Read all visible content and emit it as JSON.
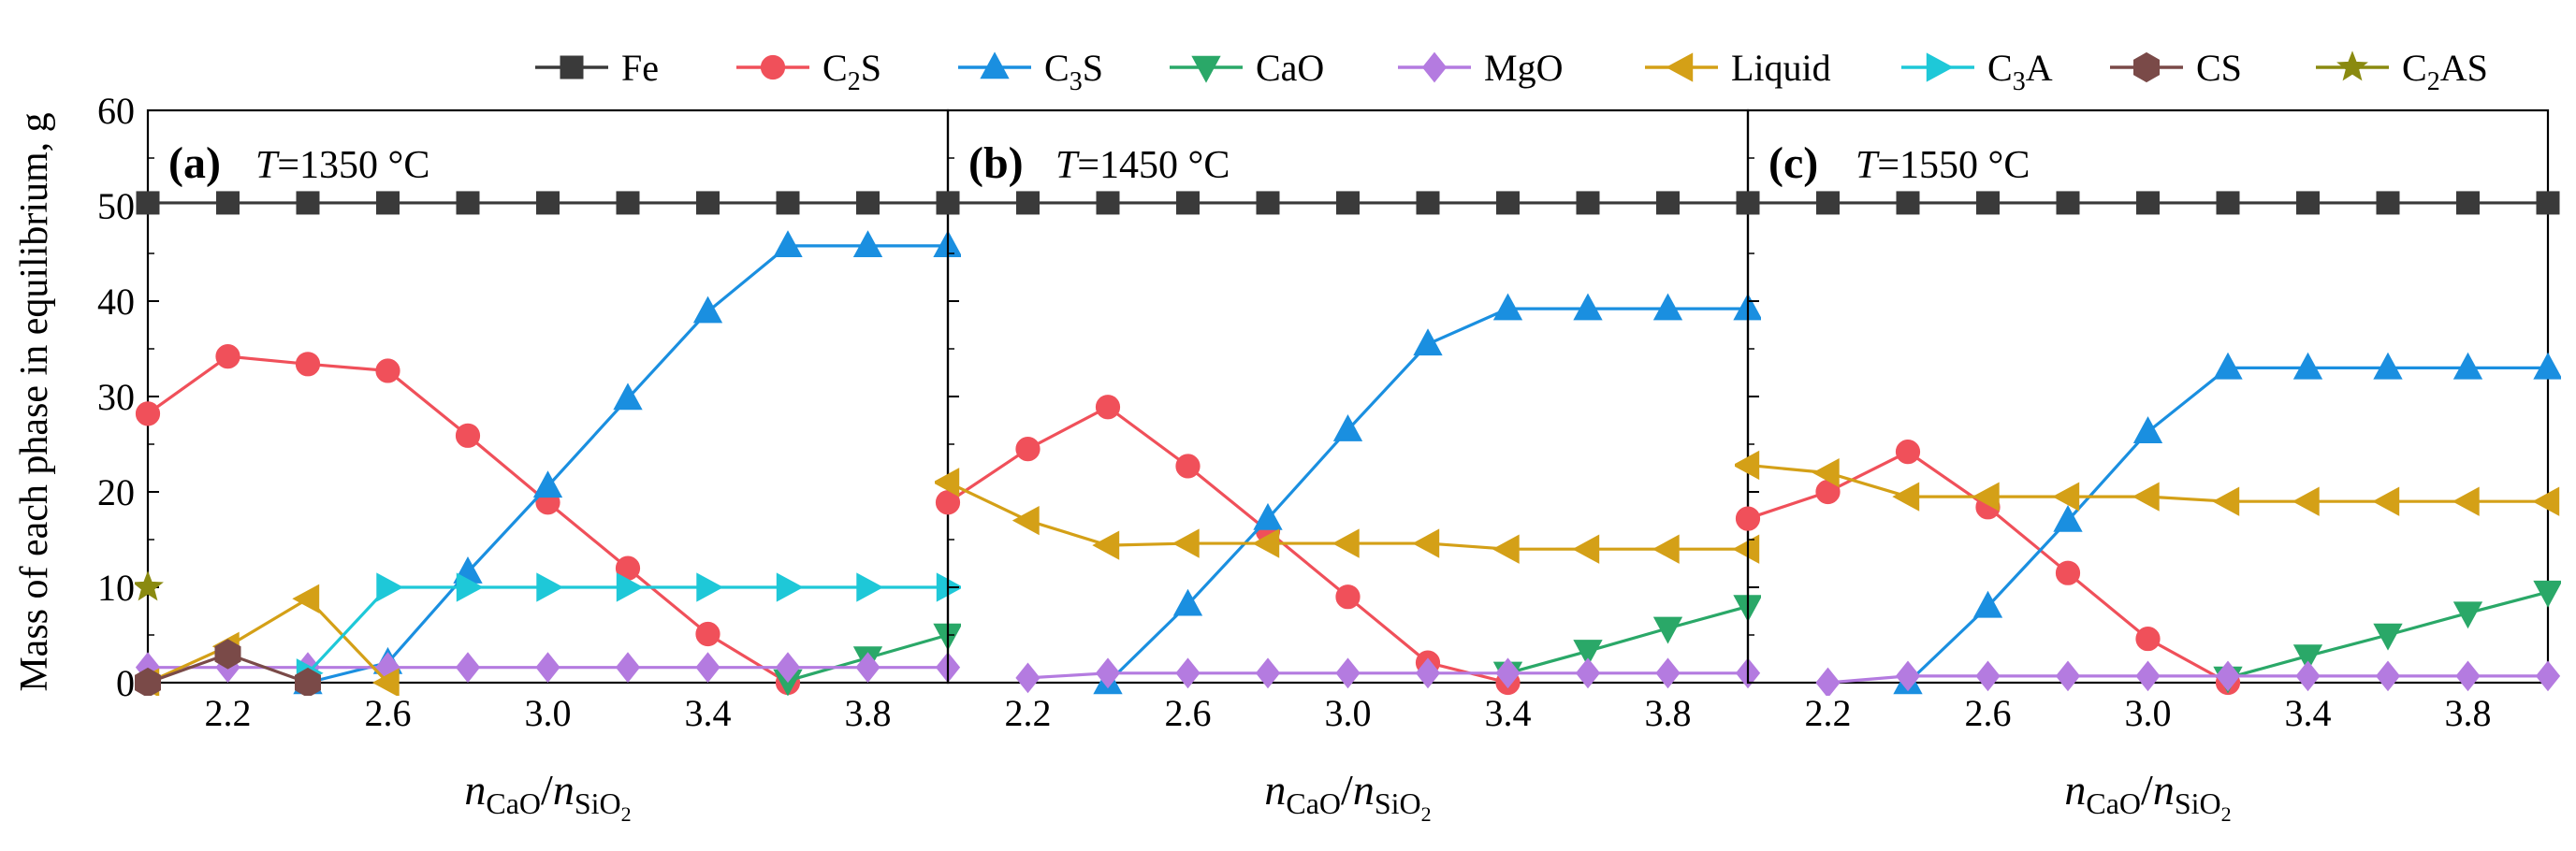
{
  "figure": {
    "ylabel": "Mass of each phase in equilibrium, g",
    "xlabel": {
      "n1": "n",
      "s1": "CaO",
      "sep": "/",
      "n2": "n",
      "s2": "SiO",
      "s2b": "2"
    }
  },
  "legend": [
    {
      "key": "Fe",
      "main": "Fe",
      "sub": "",
      "rest": "",
      "color": "#3a3a3a",
      "marker": "square"
    },
    {
      "key": "C2S",
      "main": "C",
      "sub": "2",
      "rest": "S",
      "color": "#f0505a",
      "marker": "circle"
    },
    {
      "key": "C3S",
      "main": "C",
      "sub": "3",
      "rest": "S",
      "color": "#1a8fe0",
      "marker": "triangle-up"
    },
    {
      "key": "CaO",
      "main": "CaO",
      "sub": "",
      "rest": "",
      "color": "#2aa868",
      "marker": "triangle-down"
    },
    {
      "key": "MgO",
      "main": "MgO",
      "sub": "",
      "rest": "",
      "color": "#b47be0",
      "marker": "diamond"
    },
    {
      "key": "Liquid",
      "main": "Liquid",
      "sub": "",
      "rest": "",
      "color": "#d4a017",
      "marker": "triangle-left"
    },
    {
      "key": "C3A",
      "main": "C",
      "sub": "3",
      "rest": "A",
      "color": "#1ec8d8",
      "marker": "triangle-right"
    },
    {
      "key": "CS",
      "main": "CS",
      "sub": "",
      "rest": "",
      "color": "#7a4a48",
      "marker": "hexagon"
    },
    {
      "key": "C2AS",
      "main": "C",
      "sub": "2",
      "rest": "AS",
      "color": "#8a8a10",
      "marker": "star"
    }
  ],
  "chart_data": [
    {
      "type": "line",
      "panel_label": "(a)",
      "temp_label": {
        "T": "T",
        "rest": "=1350 °C"
      },
      "xlabel": "nCaO/nSiO2",
      "ylabel": "Mass of each phase in equilibrium, g",
      "xlim": [
        2.0,
        4.0
      ],
      "ylim": [
        0,
        60
      ],
      "xticks": [
        "2.2",
        "2.6",
        "3.0",
        "3.4",
        "3.8"
      ],
      "yticks": [
        "0",
        "10",
        "20",
        "30",
        "40",
        "50",
        "60"
      ],
      "x": [
        2.0,
        2.2,
        2.4,
        2.6,
        2.8,
        3.0,
        3.2,
        3.4,
        3.6,
        3.8,
        4.0
      ],
      "series": [
        {
          "name": "Fe",
          "values": [
            50.3,
            50.3,
            50.3,
            50.3,
            50.3,
            50.3,
            50.3,
            50.3,
            50.3,
            50.3,
            50.3
          ]
        },
        {
          "name": "C2S",
          "values": [
            28.2,
            34.2,
            33.4,
            32.7,
            25.9,
            18.9,
            12.0,
            5.1,
            0,
            null,
            null
          ]
        },
        {
          "name": "C3S",
          "values": [
            null,
            null,
            0,
            2.1,
            11.6,
            20.6,
            29.8,
            38.9,
            45.8,
            45.8,
            45.8
          ]
        },
        {
          "name": "CaO",
          "values": [
            null,
            null,
            null,
            null,
            null,
            null,
            null,
            null,
            0.2,
            2.6,
            5.0
          ]
        },
        {
          "name": "MgO",
          "values": [
            1.6,
            1.6,
            1.6,
            1.6,
            1.6,
            1.6,
            1.6,
            1.6,
            1.6,
            1.6,
            1.6
          ]
        },
        {
          "name": "Liquid",
          "values": [
            0,
            3.8,
            8.8,
            0,
            null,
            null,
            null,
            null,
            null,
            null,
            null
          ]
        },
        {
          "name": "C3A",
          "values": [
            null,
            null,
            1.0,
            10.0,
            10.0,
            10.0,
            10.0,
            10.0,
            10.0,
            10.0,
            10.0
          ]
        },
        {
          "name": "CS",
          "values": [
            0,
            3.0,
            0,
            null,
            null,
            null,
            null,
            null,
            null,
            null,
            null
          ]
        },
        {
          "name": "C2AS",
          "values": [
            10.0,
            null,
            null,
            null,
            null,
            null,
            null,
            null,
            null,
            null,
            null
          ]
        }
      ]
    },
    {
      "type": "line",
      "panel_label": "(b)",
      "temp_label": {
        "T": "T",
        "rest": "=1450 °C"
      },
      "xlabel": "nCaO/nSiO2",
      "ylabel": "Mass of each phase in equilibrium, g",
      "xlim": [
        2.0,
        4.0
      ],
      "ylim": [
        0,
        60
      ],
      "xticks": [
        "2.2",
        "2.6",
        "3.0",
        "3.4",
        "3.8"
      ],
      "yticks": [
        "0",
        "10",
        "20",
        "30",
        "40",
        "50",
        "60"
      ],
      "x": [
        2.0,
        2.2,
        2.4,
        2.6,
        2.8,
        3.0,
        3.2,
        3.4,
        3.6,
        3.8,
        4.0
      ],
      "series": [
        {
          "name": "Fe",
          "values": [
            50.3,
            50.3,
            50.3,
            50.3,
            50.3,
            50.3,
            50.3,
            50.3,
            50.3,
            50.3,
            50.3
          ]
        },
        {
          "name": "C2S",
          "values": [
            18.9,
            24.5,
            28.9,
            22.7,
            15.9,
            9.0,
            2.1,
            0,
            null,
            null,
            null
          ]
        },
        {
          "name": "C3S",
          "values": [
            null,
            null,
            0,
            8.2,
            17.2,
            26.5,
            35.5,
            39.2,
            39.2,
            39.2,
            39.2
          ]
        },
        {
          "name": "CaO",
          "values": [
            null,
            null,
            null,
            null,
            null,
            null,
            null,
            1.0,
            3.3,
            5.7,
            8.0
          ]
        },
        {
          "name": "MgO",
          "values": [
            null,
            0.5,
            1.0,
            1.0,
            1.0,
            1.0,
            1.0,
            1.0,
            1.0,
            1.0,
            1.0
          ]
        },
        {
          "name": "Liquid",
          "values": [
            21.0,
            17.0,
            14.4,
            14.6,
            14.6,
            14.6,
            14.6,
            14.0,
            14.0,
            14.0,
            14.0
          ]
        }
      ]
    },
    {
      "type": "line",
      "panel_label": "(c)",
      "temp_label": {
        "T": "T",
        "rest": "=1550 °C"
      },
      "xlabel": "nCaO/nSiO2",
      "ylabel": "Mass of each phase in equilibrium, g",
      "xlim": [
        2.0,
        4.0
      ],
      "ylim": [
        0,
        60
      ],
      "xticks": [
        "2.2",
        "2.6",
        "3.0",
        "3.4",
        "3.8"
      ],
      "yticks": [
        "0",
        "10",
        "20",
        "30",
        "40",
        "50",
        "60"
      ],
      "x": [
        2.0,
        2.2,
        2.4,
        2.6,
        2.8,
        3.0,
        3.2,
        3.4,
        3.6,
        3.8,
        4.0
      ],
      "series": [
        {
          "name": "Fe",
          "values": [
            50.3,
            50.3,
            50.3,
            50.3,
            50.3,
            50.3,
            50.3,
            50.3,
            50.3,
            50.3,
            50.3
          ]
        },
        {
          "name": "C2S",
          "values": [
            17.2,
            20.0,
            24.2,
            18.4,
            11.5,
            4.6,
            0,
            null,
            null,
            null,
            null
          ]
        },
        {
          "name": "C3S",
          "values": [
            null,
            null,
            0,
            8.0,
            17.0,
            26.3,
            33.0,
            33.0,
            33.0,
            33.0,
            33.0
          ]
        },
        {
          "name": "CaO",
          "values": [
            null,
            null,
            null,
            null,
            null,
            null,
            0.5,
            2.8,
            5.0,
            7.3,
            9.5
          ]
        },
        {
          "name": "MgO",
          "values": [
            null,
            0,
            0.7,
            0.7,
            0.7,
            0.7,
            0.7,
            0.7,
            0.7,
            0.7,
            0.7
          ]
        },
        {
          "name": "Liquid",
          "values": [
            22.8,
            22.0,
            19.5,
            19.5,
            19.5,
            19.5,
            19.0,
            19.0,
            19.0,
            19.0,
            19.0
          ]
        }
      ]
    }
  ]
}
